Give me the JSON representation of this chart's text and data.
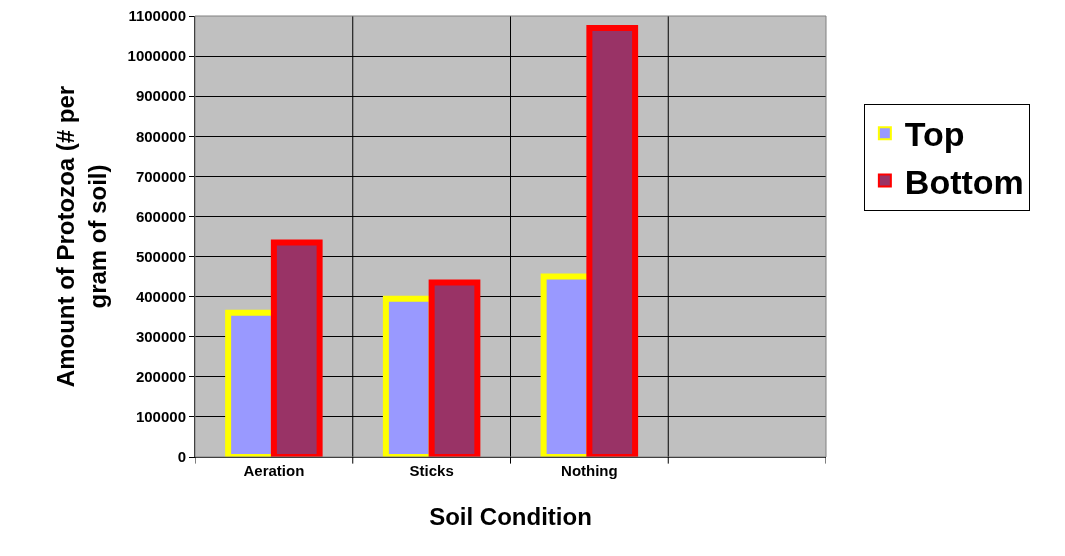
{
  "chart_data": {
    "type": "bar",
    "xlabel": "Soil Condition",
    "ylabel": "Amount of Protozoa (# per gram of soil)",
    "categories": [
      "Aeration",
      "Sticks",
      "Nothing",
      null
    ],
    "series": [
      {
        "name": "Top",
        "color": "#9999ff",
        "values": [
          360000,
          395000,
          450000,
          null
        ]
      },
      {
        "name": "Bottom",
        "color": "#993366",
        "values": [
          535000,
          435000,
          1070000,
          null
        ]
      }
    ],
    "ylim": [
      0,
      1100000
    ],
    "yticks": [
      0,
      100000,
      200000,
      300000,
      400000,
      500000,
      600000,
      700000,
      800000,
      900000,
      1000000,
      1100000
    ],
    "grid": true,
    "legend": "right"
  }
}
